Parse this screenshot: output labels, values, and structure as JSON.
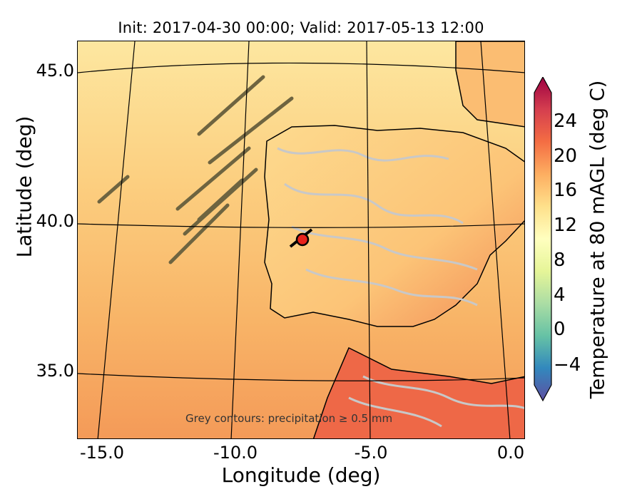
{
  "title": "Init: 2017-04-30 00:00; Valid: 2017-05-13 12:00",
  "map": {
    "x_axis_title": "Longitude (deg)",
    "y_axis_title": "Latitude (deg)",
    "x_ticks": [
      "-15.0",
      "-10.0",
      "-5.0",
      "0.0"
    ],
    "y_ticks": [
      "45.0",
      "40.0",
      "35.0"
    ],
    "note": "Grey contours: precipitation  ≥ 0.5 mm",
    "marker": {
      "label": "",
      "lon": -7.7,
      "lat": 39.4,
      "color": "#e8231c"
    },
    "colors": {
      "sea_north": "#fde59a",
      "sea_mid": "#fbc97a",
      "sea_south": "#f6a15e",
      "land": "#fdd98c",
      "land_hot": "#f38a54",
      "africa": "#ee6847",
      "precip_contour": "#c8c8c8",
      "coast": "#000000"
    }
  },
  "colorbar": {
    "label": "Temperature at 80 mAGL (deg C)",
    "ticks": [
      "24",
      "20",
      "16",
      "12",
      "8",
      "4",
      "0",
      "−4"
    ],
    "range": [
      -7,
      27
    ],
    "colors": [
      "#5e4fa2",
      "#3288bd",
      "#66c2a5",
      "#abdda4",
      "#e6f598",
      "#ffffbf",
      "#fee08b",
      "#fdae61",
      "#f46d43",
      "#d53e4f",
      "#9e0142"
    ]
  }
}
